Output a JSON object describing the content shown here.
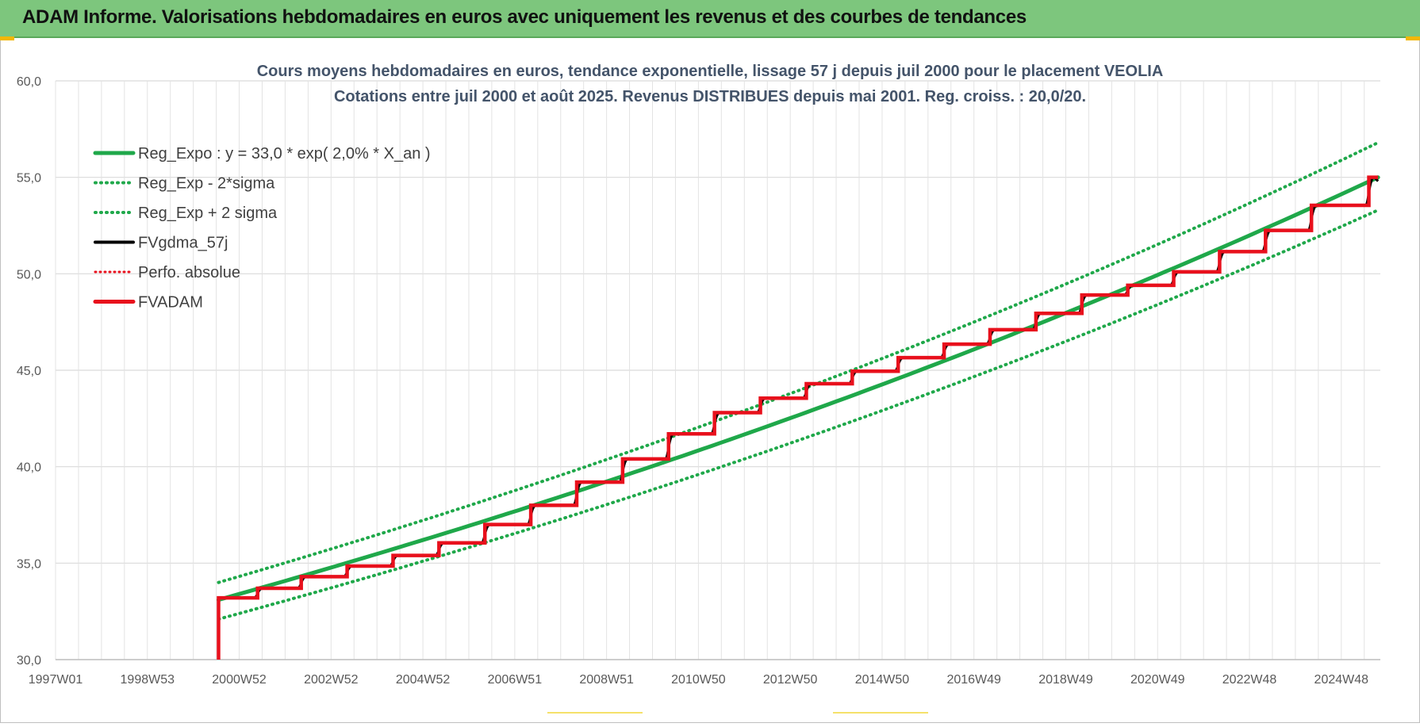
{
  "banner": {
    "title": "ADAM Informe. Valorisations hebdomadaires en euros avec uniquement les revenus et des courbes de tendances"
  },
  "colors": {
    "banner_bg": "#7dc67d",
    "reg_green": "#1fa84a",
    "red": "#e8101c",
    "black": "#000000",
    "grid": "#d9d9d9",
    "title_text": "#44546a",
    "accent_corner": "#f2b705"
  },
  "chart_data": {
    "type": "line",
    "title_line1": "Cours moyens hebdomadaires en euros, tendance exponentielle, lissage 57 j depuis juil 2000 pour le placement VEOLIA",
    "title_line2": "Cotations entre juil 2000 et août 2025. Revenus DISTRIBUES depuis mai 2001. Reg. croiss. : 20,0/20.",
    "xlim": [
      1997.0,
      2025.85
    ],
    "ylim": [
      30,
      60
    ],
    "y_ticks": [
      30,
      35,
      40,
      45,
      50,
      55,
      60
    ],
    "y_tick_labels": [
      "30,0",
      "35,0",
      "40,0",
      "45,0",
      "50,0",
      "55,0",
      "60,0"
    ],
    "x_ticks": [
      1997.0,
      1999.0,
      2001.0,
      2003.0,
      2005.0,
      2007.0,
      2009.0,
      2011.0,
      2013.0,
      2015.0,
      2017.0,
      2019.0,
      2021.0,
      2023.0,
      2025.0
    ],
    "x_tick_labels": [
      "1997W01",
      "1998W53",
      "2000W52",
      "2002W52",
      "2004W52",
      "2006W51",
      "2008W51",
      "2010W50",
      "2012W50",
      "2014W50",
      "2016W49",
      "2018W49",
      "2020W49",
      "2022W48",
      "2024W48"
    ],
    "grid": true,
    "legend_position": "top-left",
    "series": [
      {
        "name": "Reg_Expo : y = 33,0 * exp( 2,0% *  X_an )",
        "key": "reg",
        "style": "solid",
        "color": "#1fa84a",
        "x": [
          2000.55,
          2025.8
        ],
        "y": [
          33.1,
          55.0
        ]
      },
      {
        "name": "Reg_Exp - 2*sigma",
        "key": "reg_minus",
        "style": "dotted",
        "color": "#1fa84a",
        "x": [
          2000.55,
          2025.8
        ],
        "y": [
          32.1,
          53.3
        ]
      },
      {
        "name": "Reg_Exp + 2 sigma",
        "key": "reg_plus",
        "style": "dotted",
        "color": "#1fa84a",
        "x": [
          2000.55,
          2025.8
        ],
        "y": [
          34.0,
          56.8
        ]
      },
      {
        "name": "FVgdma_57j",
        "key": "fvgdma",
        "style": "solid",
        "color": "#000000"
      },
      {
        "name": "Perfo. absolue",
        "key": "perfo",
        "style": "dotted",
        "color": "#e8101c"
      },
      {
        "name": "FVADAM",
        "key": "fvadam",
        "style": "solid",
        "color": "#e8101c",
        "start_x": 2000.55,
        "start_y": 30.0,
        "steps_x": [
          2000.55,
          2001.4,
          2002.35,
          2003.35,
          2004.35,
          2005.35,
          2006.35,
          2007.35,
          2008.35,
          2009.35,
          2010.35,
          2011.35,
          2012.35,
          2013.35,
          2014.35,
          2015.35,
          2016.35,
          2017.35,
          2018.35,
          2019.35,
          2020.35,
          2021.35,
          2022.35,
          2023.35,
          2024.35,
          2025.6
        ],
        "steps_y": [
          33.2,
          33.7,
          34.3,
          34.85,
          35.4,
          36.05,
          37.0,
          38.0,
          39.2,
          40.4,
          41.7,
          42.8,
          43.55,
          44.3,
          44.95,
          45.65,
          46.35,
          47.1,
          47.95,
          48.9,
          49.4,
          50.1,
          51.15,
          52.25,
          53.55,
          55.0
        ],
        "end_x": 2025.8
      }
    ]
  }
}
